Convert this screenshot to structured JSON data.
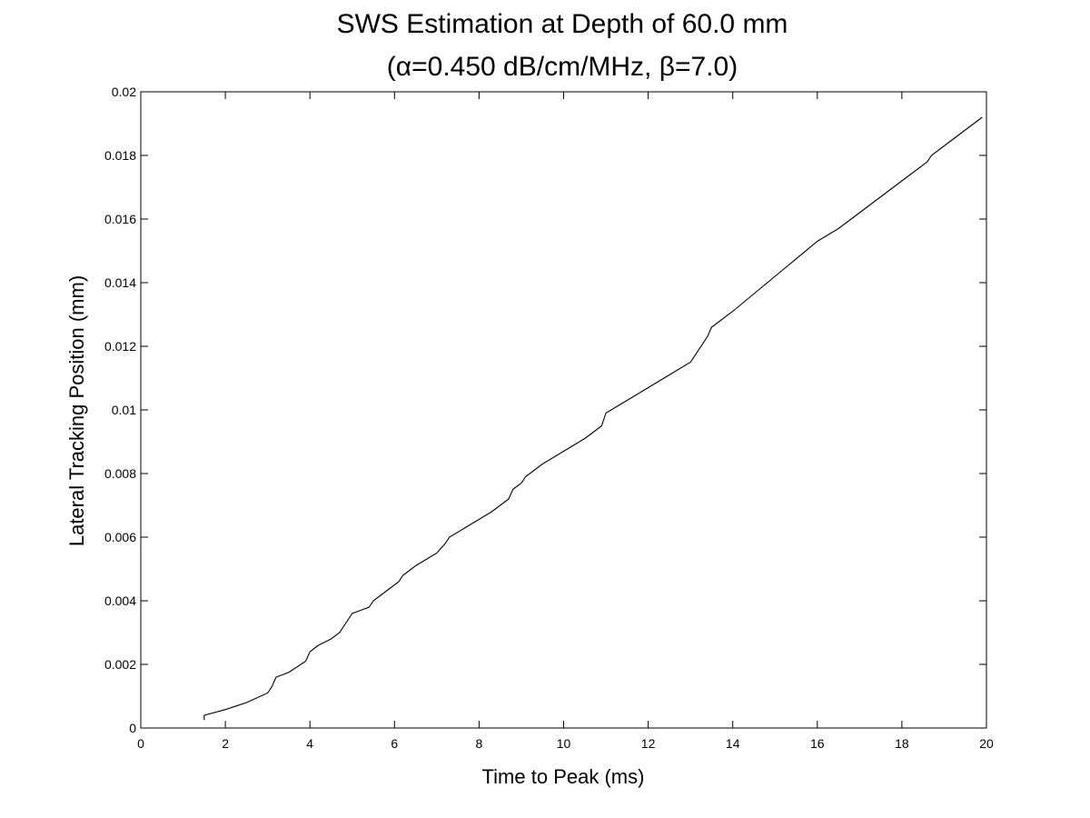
{
  "chart_data": {
    "type": "line",
    "title": "SWS Estimation at Depth of 60.0 mm",
    "subtitle": "(α=0.450 dB/cm/MHz, β=7.0)",
    "xlabel": "Time to Peak (ms)",
    "ylabel": "Lateral Tracking Position (mm)",
    "xlim": [
      0,
      20
    ],
    "ylim": [
      0,
      0.02
    ],
    "xticks": [
      0,
      2,
      4,
      6,
      8,
      10,
      12,
      14,
      16,
      18,
      20
    ],
    "xtick_labels": [
      "0",
      "2",
      "4",
      "6",
      "8",
      "10",
      "12",
      "14",
      "16",
      "18",
      "20"
    ],
    "yticks": [
      0,
      0.002,
      0.004,
      0.006,
      0.008,
      0.01,
      0.012,
      0.014,
      0.016,
      0.018,
      0.02
    ],
    "ytick_labels": [
      "0",
      "0.002",
      "0.004",
      "0.006",
      "0.008",
      "0.01",
      "0.012",
      "0.014",
      "0.016",
      "0.018",
      "0.02"
    ],
    "grid": false,
    "legend": "none",
    "line_color": "#000000",
    "series": [
      {
        "x": [
          1.5,
          1.5,
          2.0,
          2.5,
          3.0,
          3.1,
          3.2,
          3.5,
          3.9,
          4.0,
          4.2,
          4.5,
          4.7,
          4.8,
          5.0,
          5.2,
          5.4,
          5.5,
          5.8,
          6.1,
          6.2,
          6.5,
          7.0,
          7.2,
          7.3,
          7.8,
          8.3,
          8.7,
          8.8,
          9.0,
          9.1,
          9.5,
          10.0,
          10.5,
          10.9,
          11.0,
          11.5,
          12.0,
          12.5,
          13.0,
          13.4,
          13.5,
          14.0,
          15.0,
          16.0,
          16.5,
          16.6,
          17.0,
          17.5,
          18.0,
          18.6,
          18.7,
          19.0,
          19.5,
          19.9
        ],
        "y": [
          0.00025,
          0.0004,
          0.00058,
          0.0008,
          0.0011,
          0.0013,
          0.0016,
          0.00175,
          0.0021,
          0.0024,
          0.0026,
          0.0028,
          0.003,
          0.0032,
          0.0036,
          0.0037,
          0.0038,
          0.004,
          0.0043,
          0.0046,
          0.0048,
          0.0051,
          0.0055,
          0.0058,
          0.006,
          0.0064,
          0.0068,
          0.0072,
          0.0075,
          0.0077,
          0.0079,
          0.0083,
          0.0087,
          0.0091,
          0.0095,
          0.0099,
          0.0103,
          0.0107,
          0.0111,
          0.0115,
          0.0123,
          0.0126,
          0.0131,
          0.0142,
          0.0153,
          0.0157,
          0.0158,
          0.0162,
          0.0167,
          0.0172,
          0.0178,
          0.018,
          0.0183,
          0.0188,
          0.0192
        ]
      }
    ]
  }
}
